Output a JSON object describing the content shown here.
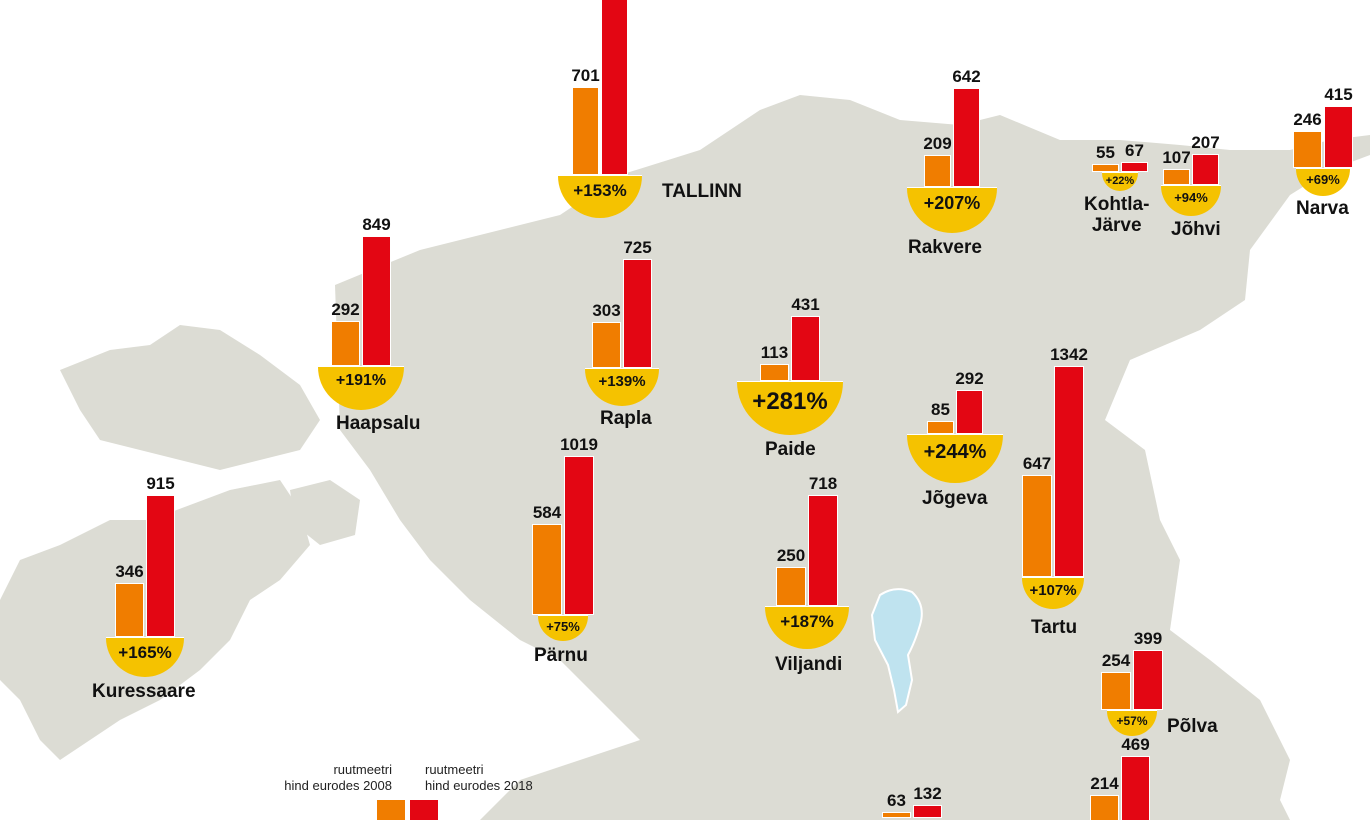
{
  "colors": {
    "land": "#dcdcd4",
    "lake": "#bfe3ef",
    "bar_2008": "#f07d00",
    "bar_2018": "#e30613",
    "badge": "#f5c200"
  },
  "legend": {
    "label_2008": "ruutmeetri\nhind eurodes 2008",
    "label_2018": "ruutmeetri\nhind eurodes 2018"
  },
  "cities": [
    {
      "id": "tallinn",
      "name": "TALLINN",
      "v2008": 701,
      "v2018": null,
      "change": "+153%"
    },
    {
      "id": "rakvere",
      "name": "Rakvere",
      "v2008": 209,
      "v2018": 642,
      "change": "+207%"
    },
    {
      "id": "kohtla",
      "name": "Kohtla-\nJärve",
      "v2008": 55,
      "v2018": 67,
      "change": "+22%"
    },
    {
      "id": "johvi",
      "name": "Jõhvi",
      "v2008": 107,
      "v2018": 207,
      "change": "+94%"
    },
    {
      "id": "narva",
      "name": "Narva",
      "v2008": 246,
      "v2018": 415,
      "change": "+69%"
    },
    {
      "id": "haapsalu",
      "name": "Haapsalu",
      "v2008": 292,
      "v2018": 849,
      "change": "+191%"
    },
    {
      "id": "rapla",
      "name": "Rapla",
      "v2008": 303,
      "v2018": 725,
      "change": "+139%"
    },
    {
      "id": "paide",
      "name": "Paide",
      "v2008": 113,
      "v2018": 431,
      "change": "+281%"
    },
    {
      "id": "jogeva",
      "name": "Jõgeva",
      "v2008": 85,
      "v2018": 292,
      "change": "+244%"
    },
    {
      "id": "tartu",
      "name": "Tartu",
      "v2008": 647,
      "v2018": 1342,
      "change": "+107%"
    },
    {
      "id": "parnu",
      "name": "Pärnu",
      "v2008": 584,
      "v2018": 1019,
      "change": "+75%"
    },
    {
      "id": "viljandi",
      "name": "Viljandi",
      "v2008": 250,
      "v2018": 718,
      "change": "+187%"
    },
    {
      "id": "kuressaare",
      "name": "Kuressaare",
      "v2008": 346,
      "v2018": 915,
      "change": "+165%"
    },
    {
      "id": "polva",
      "name": "Põlva",
      "v2008": 254,
      "v2018": 399,
      "change": "+57%"
    },
    {
      "id": "valga",
      "name": "",
      "v2008": 63,
      "v2018": 132,
      "change": ""
    },
    {
      "id": "voru",
      "name": "",
      "v2008": 214,
      "v2018": 469,
      "change": ""
    }
  ]
}
